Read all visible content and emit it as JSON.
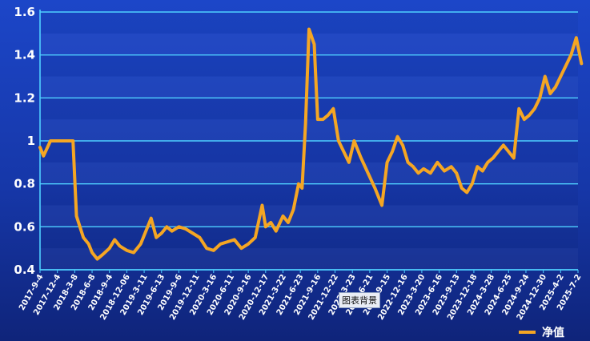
{
  "chart_data": {
    "type": "line",
    "x_ticks": [
      "2017-9-4",
      "2017-12-4",
      "2018-3-8",
      "2018-6-8",
      "2018-9-4",
      "2018-12-06",
      "2019-3-11",
      "2019-6-13",
      "2019-9-6",
      "2019-12-11",
      "2020-3-16",
      "2020-6-11",
      "2020-9-16",
      "2020-12-17",
      "2021-3-22",
      "2021-6-23",
      "2021-9-16",
      "2021-12-22",
      "2022-3-23",
      "2022-6-21",
      "2022-9-15",
      "2022-12-16",
      "2023-3-20",
      "2023-6-16",
      "2023-9-13",
      "2023-12-18",
      "2024-3-28",
      "2024-6-25",
      "2024-9-24",
      "2024-12-30",
      "2025-4-2",
      "2025-7-2"
    ],
    "ylim": [
      0.4,
      1.6
    ],
    "y_ticks": [
      "0.4",
      "0.6",
      "0.8",
      "1",
      "1.2",
      "1.4",
      "1.6"
    ],
    "grid": true,
    "legend_position": "bottom-right",
    "series": [
      {
        "name": "净值",
        "color": "#f5a623",
        "x_index": [
          0,
          0.2,
          0.6,
          1,
          1.5,
          1.9,
          2.1,
          2.3,
          2.5,
          2.8,
          3.0,
          3.3,
          3.6,
          4.0,
          4.3,
          4.6,
          5.0,
          5.4,
          5.8,
          6.1,
          6.4,
          6.7,
          7.0,
          7.3,
          7.6,
          8.0,
          8.4,
          8.8,
          9.2,
          9.6,
          10.0,
          10.4,
          10.8,
          11.2,
          11.6,
          12.0,
          12.4,
          12.8,
          13.0,
          13.3,
          13.6,
          14.0,
          14.3,
          14.6,
          14.9,
          15.1,
          15.3,
          15.5,
          15.8,
          16.0,
          16.3,
          16.6,
          16.9,
          17.2,
          17.5,
          17.8,
          18.1,
          18.5,
          18.9,
          19.3,
          19.7,
          20.0,
          20.3,
          20.6,
          20.9,
          21.2,
          21.5,
          21.8,
          22.1,
          22.5,
          22.9,
          23.3,
          23.7,
          24.0,
          24.3,
          24.6,
          24.9,
          25.2,
          25.5,
          25.8,
          26.1,
          26.4,
          26.7,
          27.0,
          27.3,
          27.6,
          27.9,
          28.2,
          28.5,
          28.8,
          29.1,
          29.4,
          29.7,
          30.0,
          30.3,
          30.6,
          30.9,
          31.2
        ],
        "values": [
          0.97,
          0.93,
          1.0,
          1.0,
          1.0,
          1.0,
          0.65,
          0.6,
          0.55,
          0.52,
          0.48,
          0.45,
          0.47,
          0.5,
          0.54,
          0.51,
          0.49,
          0.48,
          0.52,
          0.58,
          0.64,
          0.55,
          0.57,
          0.6,
          0.58,
          0.6,
          0.59,
          0.57,
          0.55,
          0.5,
          0.49,
          0.52,
          0.53,
          0.54,
          0.5,
          0.52,
          0.55,
          0.7,
          0.6,
          0.62,
          0.58,
          0.65,
          0.62,
          0.68,
          0.8,
          0.78,
          1.08,
          1.52,
          1.45,
          1.1,
          1.1,
          1.12,
          1.15,
          1.0,
          0.95,
          0.9,
          1.0,
          0.92,
          0.85,
          0.78,
          0.7,
          0.9,
          0.95,
          1.02,
          0.98,
          0.9,
          0.88,
          0.85,
          0.87,
          0.85,
          0.9,
          0.86,
          0.88,
          0.85,
          0.78,
          0.76,
          0.8,
          0.88,
          0.86,
          0.9,
          0.92,
          0.95,
          0.98,
          0.95,
          0.92,
          1.15,
          1.1,
          1.12,
          1.15,
          1.2,
          1.3,
          1.22,
          1.25,
          1.3,
          1.35,
          1.4,
          1.48,
          1.36
        ]
      }
    ]
  },
  "tooltip": {
    "label": "图表背景"
  }
}
